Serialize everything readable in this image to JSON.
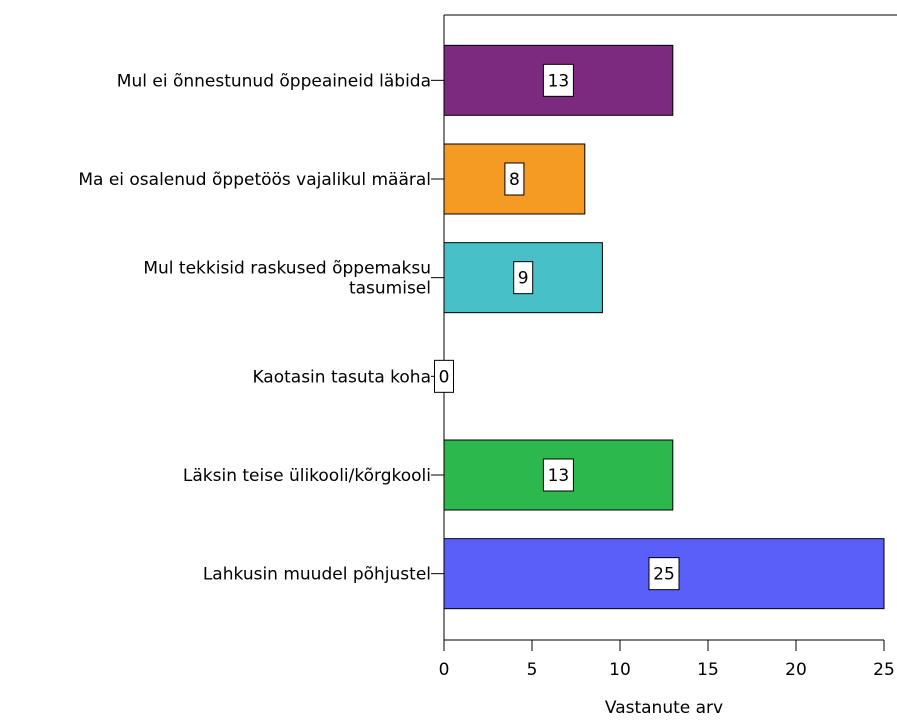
{
  "chart_data": {
    "type": "bar",
    "orientation": "horizontal",
    "categories": [
      [
        "Mul ei õnnestunud õppeaineid läbida"
      ],
      [
        "Ma ei osalenud õppetöös vajalikul määral"
      ],
      [
        "Mul tekkisid raskused õppemaksu",
        "tasumisel"
      ],
      [
        "Kaotasin tasuta koha"
      ],
      [
        "Läksin teise ülikooli/kõrgkooli"
      ],
      [
        "Lahkusin muudel põhjustel"
      ]
    ],
    "values": [
      13,
      8,
      9,
      0,
      13,
      25
    ],
    "colors": [
      "#7b2a7f",
      "#f59a23",
      "#47c0c7",
      "#5b5fcf",
      "#2db84d",
      "#5b5ff9"
    ],
    "xlabel": "Vastanute arv",
    "xlim": [
      0,
      25
    ],
    "xticks": [
      0,
      5,
      10,
      15,
      20,
      25
    ],
    "grid": false,
    "data_labels": true
  }
}
